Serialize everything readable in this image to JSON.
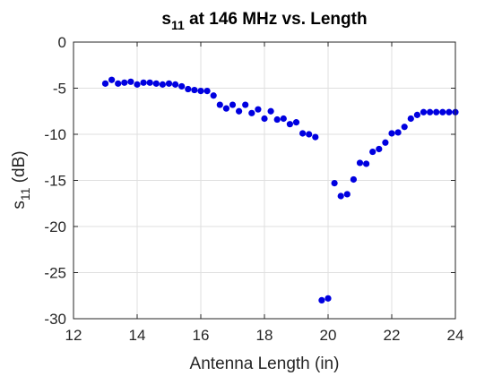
{
  "chart_data": {
    "type": "scatter",
    "title": {
      "main": "s",
      "sub": "11",
      "rest": " at 146 MHz vs. Length"
    },
    "xlabel": "Antenna Length (in)",
    "ylabel": {
      "main": "s",
      "sub": "11",
      "rest": " (dB)"
    },
    "xlim": [
      12,
      24
    ],
    "ylim": [
      -30,
      0
    ],
    "xticks": [
      "12",
      "14",
      "16",
      "18",
      "20",
      "22",
      "24"
    ],
    "yticks": [
      "0",
      "-5",
      "-10",
      "-15",
      "-20",
      "-25",
      "-30"
    ],
    "grid": true,
    "marker_color": "#0000e0",
    "series": [
      {
        "x": [
          13.0,
          13.2,
          13.4,
          13.6,
          13.8,
          14.0,
          14.2,
          14.4,
          14.6,
          14.8,
          15.0,
          15.2,
          15.4,
          15.6,
          15.8,
          16.0,
          16.2,
          16.4,
          16.6,
          16.8,
          17.0,
          17.2,
          17.4,
          17.6,
          17.8,
          18.0,
          18.2,
          18.4,
          18.6,
          18.8,
          19.0,
          19.2,
          19.4,
          19.6,
          19.8,
          20.0,
          20.2,
          20.4,
          20.6,
          20.8,
          21.0,
          21.2,
          21.4,
          21.6,
          21.8,
          22.0,
          22.2,
          22.4,
          22.6,
          22.8,
          23.0,
          23.2,
          23.4,
          23.6,
          23.8,
          24.0
        ],
        "y": [
          -4.5,
          -4.1,
          -4.5,
          -4.4,
          -4.3,
          -4.6,
          -4.4,
          -4.4,
          -4.5,
          -4.6,
          -4.5,
          -4.6,
          -4.8,
          -5.1,
          -5.2,
          -5.3,
          -5.3,
          -5.8,
          -6.8,
          -7.2,
          -6.8,
          -7.5,
          -6.8,
          -7.7,
          -7.3,
          -8.3,
          -7.5,
          -8.4,
          -8.3,
          -8.9,
          -8.7,
          -9.9,
          -10.0,
          -10.3,
          -28.0,
          -27.8,
          -15.3,
          -16.7,
          -16.5,
          -14.9,
          -13.1,
          -13.2,
          -11.9,
          -11.6,
          -10.9,
          -9.9,
          -9.8,
          -9.2,
          -8.3,
          -7.9,
          -7.6,
          -7.6,
          -7.6,
          -7.6,
          -7.6,
          -7.6
        ]
      }
    ]
  }
}
